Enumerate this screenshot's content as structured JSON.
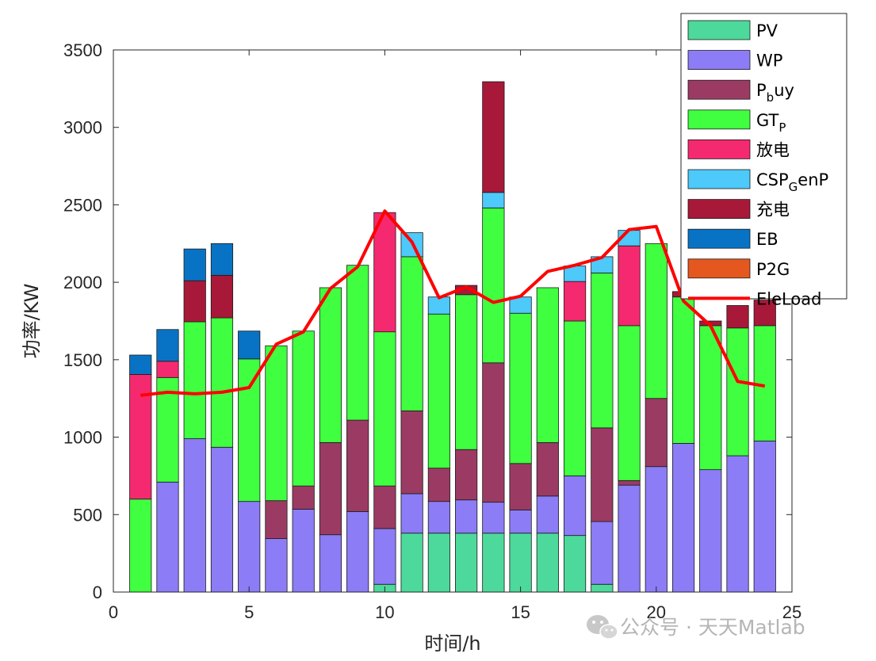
{
  "chart_data": {
    "type": "bar",
    "stacked": true,
    "title": "",
    "xlabel": "时间/h",
    "ylabel": "功率/KW",
    "xlim": [
      0,
      25
    ],
    "ylim": [
      0,
      3500
    ],
    "xticks": [
      "0",
      "5",
      "10",
      "15",
      "20",
      "25"
    ],
    "yticks": [
      "0",
      "500",
      "1000",
      "1500",
      "2000",
      "2500",
      "3000",
      "3500"
    ],
    "x": [
      1,
      2,
      3,
      4,
      5,
      6,
      7,
      8,
      9,
      10,
      11,
      12,
      13,
      14,
      15,
      16,
      17,
      18,
      19,
      20,
      21,
      22,
      23,
      24
    ],
    "series": [
      {
        "name": "PV",
        "legend_main": "PV",
        "legend_sub": "",
        "legend_tail": "",
        "color": "#4dd99b",
        "values": [
          0,
          0,
          0,
          0,
          0,
          0,
          0,
          0,
          0,
          50,
          380,
          380,
          380,
          380,
          380,
          380,
          365,
          50,
          0,
          0,
          0,
          0,
          0,
          0
        ]
      },
      {
        "name": "WP",
        "legend_main": "WP",
        "legend_sub": "",
        "legend_tail": "",
        "color": "#8c7cf5",
        "values": [
          0,
          710,
          990,
          935,
          585,
          345,
          535,
          370,
          520,
          360,
          255,
          205,
          215,
          200,
          150,
          240,
          385,
          405,
          690,
          810,
          960,
          790,
          880,
          975
        ]
      },
      {
        "name": "P_buy",
        "legend_main": "P",
        "legend_sub": "b",
        "legend_tail": "uy",
        "color": "#9b3b63",
        "values": [
          0,
          0,
          0,
          0,
          0,
          245,
          150,
          595,
          590,
          275,
          535,
          215,
          325,
          900,
          300,
          345,
          0,
          605,
          30,
          440,
          0,
          0,
          0,
          0
        ]
      },
      {
        "name": "GT_P",
        "legend_main": "GT",
        "legend_sub": "P",
        "legend_tail": "",
        "color": "#40ff40",
        "values": [
          600,
          675,
          755,
          835,
          920,
          1000,
          1000,
          1000,
          1000,
          995,
          995,
          995,
          1000,
          1000,
          970,
          1000,
          1000,
          1000,
          1000,
          1000,
          945,
          930,
          825,
          745
        ]
      },
      {
        "name": "放电",
        "legend_main": "放电",
        "legend_sub": "",
        "legend_tail": "",
        "color": "#f5296f",
        "values": [
          805,
          105,
          0,
          0,
          0,
          0,
          0,
          0,
          0,
          770,
          0,
          0,
          0,
          0,
          0,
          0,
          255,
          0,
          515,
          0,
          0,
          0,
          0,
          0
        ]
      },
      {
        "name": "CSP_GenP",
        "legend_main": "CSP",
        "legend_sub": "G",
        "legend_tail": "enP",
        "color": "#4dc9fa",
        "values": [
          0,
          0,
          0,
          0,
          0,
          0,
          0,
          0,
          0,
          0,
          155,
          110,
          0,
          100,
          105,
          0,
          100,
          105,
          100,
          0,
          0,
          0,
          0,
          0
        ]
      },
      {
        "name": "充电",
        "legend_main": "充电",
        "legend_sub": "",
        "legend_tail": "",
        "color": "#a71839",
        "values": [
          0,
          0,
          265,
          275,
          0,
          0,
          0,
          0,
          0,
          0,
          0,
          0,
          60,
          715,
          0,
          0,
          0,
          0,
          0,
          0,
          35,
          30,
          145,
          165
        ]
      },
      {
        "name": "EB",
        "legend_main": "EB",
        "legend_sub": "",
        "legend_tail": "",
        "color": "#0873c4",
        "values": [
          125,
          205,
          205,
          205,
          180,
          0,
          0,
          0,
          0,
          0,
          0,
          0,
          0,
          0,
          0,
          0,
          0,
          0,
          0,
          0,
          0,
          0,
          0,
          0
        ]
      },
      {
        "name": "P2G",
        "legend_main": "P2G",
        "legend_sub": "",
        "legend_tail": "",
        "color": "#e4581f",
        "values": [
          0,
          0,
          0,
          0,
          0,
          0,
          0,
          0,
          0,
          0,
          0,
          0,
          0,
          0,
          0,
          0,
          0,
          0,
          0,
          0,
          0,
          0,
          0,
          0
        ]
      }
    ],
    "line": {
      "name": "EleLoad",
      "legend_main": "EleLoad",
      "legend_sub": "",
      "legend_tail": "",
      "color": "#ff0000",
      "values": [
        1270,
        1290,
        1280,
        1290,
        1320,
        1600,
        1680,
        1960,
        2100,
        2460,
        2260,
        1900,
        1970,
        1870,
        1910,
        2070,
        2110,
        2160,
        2340,
        2360,
        1880,
        1720,
        1360,
        1330
      ]
    },
    "legend_position": "top-right"
  },
  "watermark": {
    "text": "公众号 · 天天Matlab",
    "icon": "wechat-icon"
  }
}
